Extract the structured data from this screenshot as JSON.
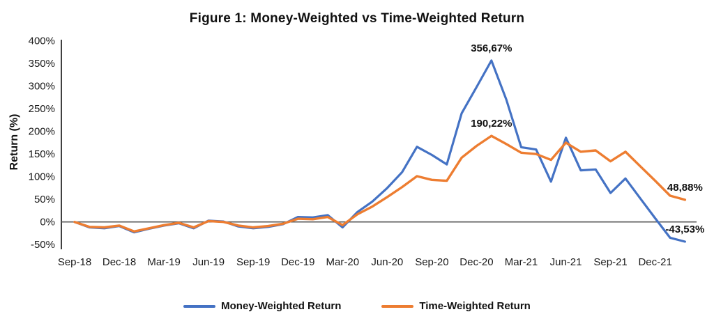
{
  "chart_data": {
    "type": "line",
    "title": "Figure 1: Money-Weighted vs Time-Weighted Return",
    "xlabel": "",
    "ylabel": "Return (%)",
    "ylim": [
      -50,
      400
    ],
    "y_tick_step": 50,
    "y_tick_labels": [
      "400%",
      "350%",
      "300%",
      "250%",
      "200%",
      "150%",
      "100%",
      "50%",
      "0%",
      "-50%"
    ],
    "grid": false,
    "legend_position": "bottom",
    "x": [
      "Sep-18",
      "Oct-18",
      "Nov-18",
      "Dec-18",
      "Jan-19",
      "Feb-19",
      "Mar-19",
      "Apr-19",
      "May-19",
      "Jun-19",
      "Jul-19",
      "Aug-19",
      "Sep-19",
      "Oct-19",
      "Nov-19",
      "Dec-19",
      "Jan-20",
      "Feb-20",
      "Mar-20",
      "Apr-20",
      "May-20",
      "Jun-20",
      "Jul-20",
      "Aug-20",
      "Sep-20",
      "Oct-20",
      "Nov-20",
      "Dec-20",
      "Jan-21",
      "Feb-21",
      "Mar-21",
      "Apr-21",
      "May-21",
      "Jun-21",
      "Jul-21",
      "Aug-21",
      "Sep-21",
      "Oct-21",
      "Nov-21",
      "Dec-21",
      "Jan-22",
      "Feb-22"
    ],
    "x_tick_labels": [
      "Sep-18",
      "Dec-18",
      "Mar-19",
      "Jun-19",
      "Sep-19",
      "Dec-19",
      "Mar-20",
      "Jun-20",
      "Sep-20",
      "Dec-20",
      "Mar-21",
      "Jun-21",
      "Sep-21",
      "Dec-21"
    ],
    "series": [
      {
        "name": "Money-Weighted Return",
        "color": "#4472C4",
        "values": [
          0,
          -12,
          -14,
          -9,
          -23,
          -15,
          -8,
          -3,
          -14,
          3,
          1,
          -10,
          -14,
          -11,
          -5,
          11,
          10,
          15,
          -12,
          22,
          45,
          75,
          110,
          166,
          148,
          127,
          240,
          298,
          356.67,
          270,
          165,
          160,
          89,
          186,
          114,
          116,
          64,
          96,
          52,
          8,
          -35,
          -43.53
        ]
      },
      {
        "name": "Time-Weighted Return",
        "color": "#ED7D31",
        "values": [
          0,
          -11,
          -12,
          -8,
          -21,
          -14,
          -7,
          -2,
          -12,
          2,
          0,
          -8,
          -12,
          -9,
          -4,
          7,
          6,
          11,
          -7,
          17,
          34,
          55,
          77,
          101,
          93,
          91,
          142,
          168,
          190.22,
          172,
          153,
          150,
          137,
          175,
          155,
          158,
          134,
          155,
          123,
          91,
          58,
          48.88
        ]
      }
    ],
    "annotations": [
      {
        "text": "356,67%",
        "series": "Money-Weighted Return",
        "x": "Jan-21",
        "value": 356.67
      },
      {
        "text": "190,22%",
        "series": "Time-Weighted Return",
        "x": "Jan-21",
        "value": 190.22
      },
      {
        "text": "48,88%",
        "series": "Time-Weighted Return",
        "x": "Feb-22",
        "value": 48.88
      },
      {
        "text": "-43,53%",
        "series": "Money-Weighted Return",
        "x": "Feb-22",
        "value": -43.53
      }
    ],
    "colors": {
      "axis_line": "#404040",
      "zero_line": "#595959",
      "money_weighted": "#4472C4",
      "time_weighted": "#ED7D31"
    }
  }
}
